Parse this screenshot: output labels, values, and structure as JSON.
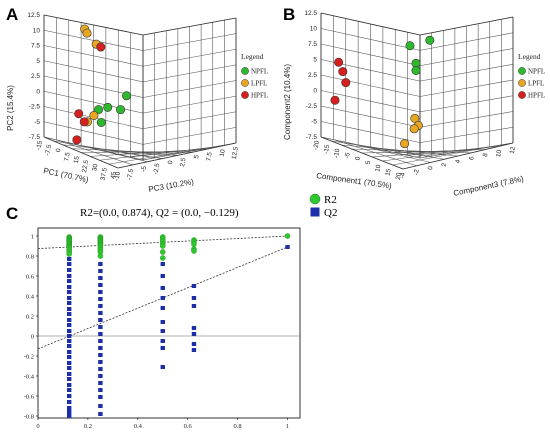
{
  "chart_data": [
    {
      "panel": "A",
      "type": "scatter",
      "xlabel": "PC1 (70.7%)",
      "ylabel": "PC2 (15.4%)",
      "zlabel": "PC3 (10.2%)",
      "x_ticks": [
        "-15",
        "-7.5",
        "0",
        "7.5",
        "15",
        "22.5",
        "30",
        "37.5",
        "45"
      ],
      "y_ticks": [
        "12.5",
        "10",
        "7.5",
        "5",
        "2.5",
        "0",
        "-2.5",
        "-5",
        "-7.5"
      ],
      "z_ticks": [
        "-10",
        "-7.5",
        "-5",
        "-2.5",
        "0",
        "2.5",
        "5",
        "7.5",
        "10",
        "12.5"
      ],
      "legend_title": "Legend",
      "legend_position": "right",
      "series": [
        {
          "name": "NPFL",
          "color": "#2eb82e",
          "points": [
            [
              -0.25,
              -0.46
            ],
            [
              -0.05,
              -0.42
            ],
            [
              0.23,
              -0.46
            ],
            [
              0.36,
              -0.22
            ],
            [
              -0.19,
              -0.68
            ]
          ]
        },
        {
          "name": "LPFL",
          "color": "#e8a623",
          "points": [
            [
              -0.55,
              0.93
            ],
            [
              -0.5,
              0.86
            ],
            [
              -0.3,
              0.67
            ],
            [
              -0.49,
              -0.67
            ],
            [
              -0.35,
              -0.56
            ]
          ]
        },
        {
          "name": "HPFL",
          "color": "#d62020",
          "points": [
            [
              -0.2,
              0.62
            ],
            [
              -0.68,
              -0.53
            ],
            [
              -0.56,
              -0.67
            ],
            [
              -0.72,
              -0.98
            ]
          ]
        }
      ]
    },
    {
      "panel": "B",
      "type": "scatter",
      "xlabel": "Component1 (70.5%)",
      "ylabel": "Component2 (10.4%)",
      "zlabel": "Component3 (7.8%)",
      "x_ticks": [
        "-20",
        "-15",
        "-10",
        "-5",
        "0",
        "5",
        "10",
        "15",
        "20"
      ],
      "y_ticks": [
        "12.5",
        "10",
        "7.5",
        "5",
        "2.5",
        "0",
        "-2.5",
        "-5",
        "-7.5"
      ],
      "z_ticks": [
        "-4",
        "-2",
        "0",
        "2",
        "4",
        "6",
        "8",
        "10",
        "12"
      ],
      "legend_title": "Legend",
      "legend_position": "right",
      "series": [
        {
          "name": "NPFL",
          "color": "#2eb82e",
          "points": [
            [
              0.78,
              0.85
            ],
            [
              0.45,
              0.75
            ],
            [
              0.55,
              0.43
            ],
            [
              0.55,
              0.3
            ]
          ]
        },
        {
          "name": "LPFL",
          "color": "#e8a623",
          "points": [
            [
              0.53,
              -0.57
            ],
            [
              0.59,
              -0.7
            ],
            [
              0.52,
              -0.76
            ],
            [
              0.36,
              -1.03
            ]
          ]
        },
        {
          "name": "HPFL",
          "color": "#d62020",
          "points": [
            [
              -0.74,
              0.45
            ],
            [
              -0.67,
              0.28
            ],
            [
              -0.62,
              0.08
            ],
            [
              -0.8,
              -0.24
            ]
          ]
        }
      ]
    },
    {
      "panel": "C",
      "type": "scatter",
      "stat_text": "R2=(0.0, 0.874),   Q2 = (0.0,   −0.129)",
      "x_ticks": [
        "0",
        "0.2",
        "0.4",
        "0.6",
        "0.8",
        "1"
      ],
      "y_ticks": [
        "1",
        "0.8",
        "0.6",
        "0.4",
        "0.2",
        "0",
        "-0.2",
        "-0.4",
        "-0.6",
        "-0.8"
      ],
      "xlim": [
        0,
        1.05
      ],
      "ylim": [
        -0.82,
        1.08
      ],
      "legend_position": "top-right",
      "series": [
        {
          "name": "R2",
          "color": "#2ec82e",
          "marker": "circle",
          "intercept": 0.874,
          "slope": 0.126,
          "x_groups": [
            0.125,
            0.25,
            0.5,
            0.625,
            1.0
          ],
          "y_groups": [
            [
              0.99,
              0.98,
              0.97,
              0.96,
              0.95,
              0.94,
              0.93,
              0.92,
              0.91,
              0.9,
              0.89,
              0.88,
              0.86,
              0.84,
              0.82
            ],
            [
              0.99,
              0.98,
              0.97,
              0.96,
              0.95,
              0.94,
              0.93,
              0.92,
              0.91,
              0.9,
              0.88,
              0.86,
              0.84,
              0.8
            ],
            [
              0.99,
              0.97,
              0.95,
              0.92,
              0.9,
              0.84,
              0.78
            ],
            [
              0.96,
              0.94,
              0.92,
              0.87,
              0.85
            ],
            [
              1.0
            ]
          ]
        },
        {
          "name": "Q2",
          "color": "#1a2fa8",
          "marker": "square",
          "intercept": -0.129,
          "slope": 1.019,
          "x_groups": [
            0.125,
            0.25,
            0.5,
            0.625,
            1.0
          ],
          "y_groups": [
            [
              0.77,
              0.72,
              0.66,
              0.6,
              0.55,
              0.49,
              0.44,
              0.38,
              0.33,
              0.27,
              0.22,
              0.16,
              0.11,
              0.05,
              0.0,
              -0.05,
              -0.1,
              -0.16,
              -0.21,
              -0.27,
              -0.32,
              -0.38,
              -0.43,
              -0.49,
              -0.54,
              -0.6,
              -0.66,
              -0.72,
              -0.76,
              -0.8
            ],
            [
              0.72,
              0.65,
              0.58,
              0.51,
              0.44,
              0.37,
              0.3,
              0.23,
              0.16,
              0.09,
              0.02,
              -0.05,
              -0.12,
              -0.19,
              -0.26,
              -0.33,
              -0.4,
              -0.47,
              -0.54,
              -0.61,
              -0.7,
              -0.78
            ],
            [
              0.72,
              0.6,
              0.48,
              0.38,
              0.28,
              0.14,
              0.05,
              -0.05,
              -0.12,
              -0.31
            ],
            [
              0.5,
              0.38,
              0.3,
              0.08,
              0.02,
              -0.08,
              -0.14
            ],
            [
              0.89
            ]
          ]
        }
      ]
    }
  ]
}
